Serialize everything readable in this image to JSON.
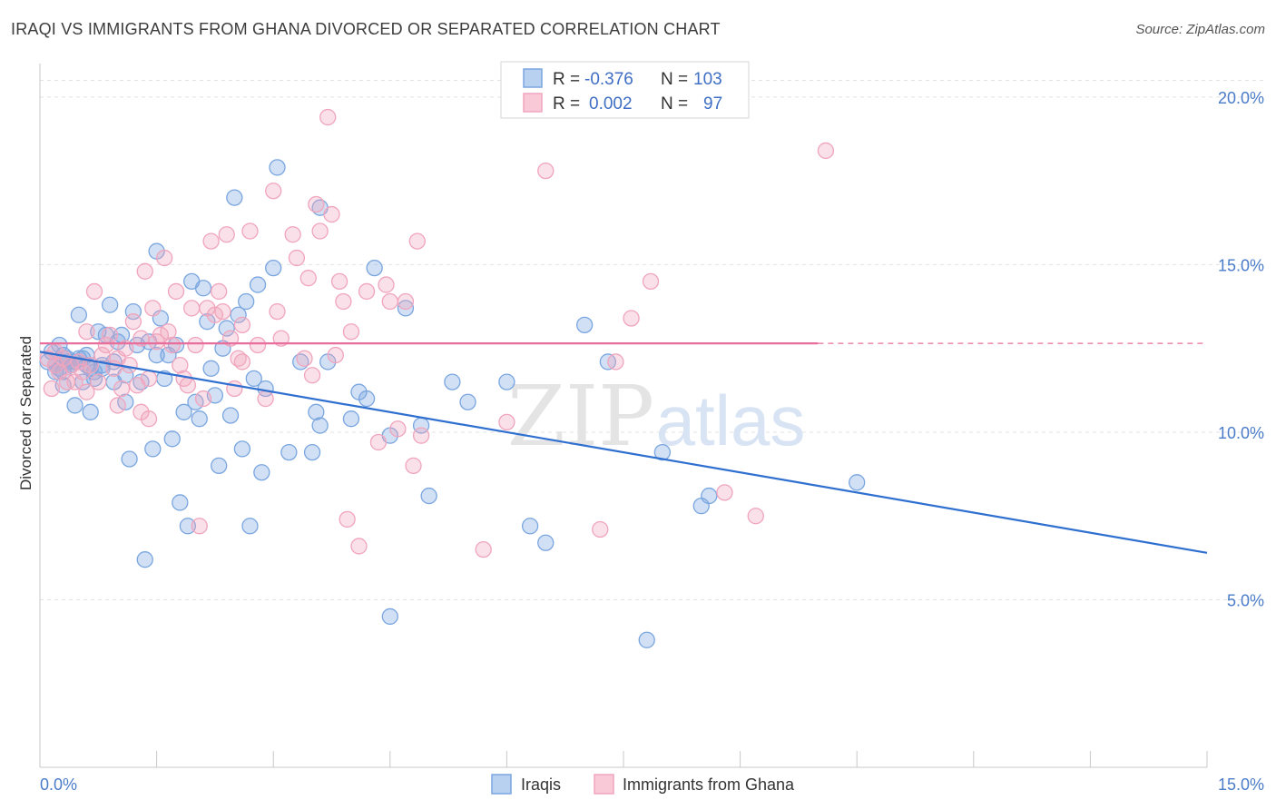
{
  "header": {
    "title": "IRAQI VS IMMIGRANTS FROM GHANA DIVORCED OR SEPARATED CORRELATION CHART",
    "source": "Source: ZipAtlas.com"
  },
  "watermark": {
    "zip": "ZIP",
    "atlas": "atlas"
  },
  "stats_legend": {
    "r_label": "R =",
    "n_label": "N =",
    "rows": [
      {
        "series": "Iraqis",
        "r": "-0.376",
        "n": "103"
      },
      {
        "series": "Immigrants from Ghana",
        "r": "0.002",
        "n": "97"
      }
    ]
  },
  "chart_data": {
    "type": "scatter",
    "title": "IRAQI VS IMMIGRANTS FROM GHANA DIVORCED OR SEPARATED CORRELATION CHART",
    "ylabel": "Divorced or Separated",
    "xlabel": "",
    "xlim": [
      0,
      15
    ],
    "ylim": [
      0,
      21
    ],
    "x_tick_labels": [
      {
        "value": 0,
        "label": "0.0%"
      },
      {
        "value": 15,
        "label": "15.0%"
      }
    ],
    "y_tick_labels": [
      {
        "value": 5,
        "label": "5.0%"
      },
      {
        "value": 10,
        "label": "10.0%"
      },
      {
        "value": 15,
        "label": "15.0%"
      },
      {
        "value": 20,
        "label": "20.0%"
      }
    ],
    "grid": "horizontal dashed",
    "legend_position": "bottom-center",
    "series": [
      {
        "name": "Iraqis",
        "color": "#7aa6e0",
        "line_color": "#2f6fd0",
        "trend": {
          "x": [
            0,
            15
          ],
          "y": [
            12.4,
            6.4
          ],
          "style": "solid"
        },
        "points": [
          [
            0.1,
            12.1
          ],
          [
            0.15,
            12.4
          ],
          [
            0.2,
            12.0
          ],
          [
            0.25,
            12.6
          ],
          [
            0.3,
            11.8
          ],
          [
            0.35,
            12.2
          ],
          [
            0.4,
            12.0
          ],
          [
            0.45,
            10.8
          ],
          [
            0.5,
            13.5
          ],
          [
            0.55,
            11.5
          ],
          [
            0.6,
            12.0
          ],
          [
            0.65,
            10.6
          ],
          [
            0.7,
            11.6
          ],
          [
            0.75,
            13.0
          ],
          [
            0.8,
            11.9
          ],
          [
            0.85,
            12.9
          ],
          [
            0.9,
            13.8
          ],
          [
            0.95,
            11.5
          ],
          [
            1.0,
            12.7
          ],
          [
            1.05,
            12.9
          ],
          [
            1.1,
            10.9
          ],
          [
            1.15,
            9.2
          ],
          [
            1.2,
            13.6
          ],
          [
            1.25,
            12.6
          ],
          [
            1.3,
            11.5
          ],
          [
            1.35,
            6.2
          ],
          [
            1.4,
            12.7
          ],
          [
            1.45,
            9.5
          ],
          [
            1.5,
            12.3
          ],
          [
            1.55,
            13.4
          ],
          [
            1.6,
            11.6
          ],
          [
            1.65,
            12.3
          ],
          [
            1.7,
            9.8
          ],
          [
            1.75,
            12.6
          ],
          [
            1.8,
            7.9
          ],
          [
            1.85,
            10.6
          ],
          [
            1.9,
            7.2
          ],
          [
            1.95,
            14.5
          ],
          [
            2.0,
            10.9
          ],
          [
            2.05,
            10.4
          ],
          [
            2.1,
            14.3
          ],
          [
            2.15,
            13.3
          ],
          [
            2.2,
            11.9
          ],
          [
            2.25,
            11.1
          ],
          [
            2.3,
            9.0
          ],
          [
            2.35,
            12.5
          ],
          [
            2.4,
            13.1
          ],
          [
            2.45,
            10.5
          ],
          [
            2.5,
            17.0
          ],
          [
            2.55,
            13.5
          ],
          [
            2.6,
            9.5
          ],
          [
            2.65,
            13.9
          ],
          [
            2.7,
            7.2
          ],
          [
            2.75,
            11.6
          ],
          [
            2.8,
            14.4
          ],
          [
            2.85,
            8.8
          ],
          [
            2.9,
            11.3
          ],
          [
            3.0,
            14.9
          ],
          [
            3.05,
            17.9
          ],
          [
            3.2,
            9.4
          ],
          [
            3.35,
            12.1
          ],
          [
            3.5,
            9.4
          ],
          [
            3.55,
            10.6
          ],
          [
            3.6,
            10.2
          ],
          [
            3.7,
            12.1
          ],
          [
            4.0,
            10.4
          ],
          [
            4.1,
            11.2
          ],
          [
            4.2,
            11.0
          ],
          [
            4.3,
            14.9
          ],
          [
            4.5,
            9.9
          ],
          [
            4.7,
            13.7
          ],
          [
            4.9,
            10.2
          ],
          [
            5.0,
            8.1
          ],
          [
            5.3,
            11.5
          ],
          [
            5.5,
            10.9
          ],
          [
            6.0,
            11.5
          ],
          [
            6.3,
            7.2
          ],
          [
            6.5,
            6.7
          ],
          [
            7.0,
            13.2
          ],
          [
            7.3,
            12.1
          ],
          [
            7.8,
            3.8
          ],
          [
            8.0,
            9.4
          ],
          [
            8.5,
            7.8
          ],
          [
            8.6,
            8.1
          ],
          [
            10.5,
            8.5
          ],
          [
            4.5,
            4.5
          ],
          [
            0.3,
            11.4
          ],
          [
            0.45,
            12.1
          ],
          [
            0.6,
            12.3
          ],
          [
            0.7,
            11.8
          ],
          [
            0.95,
            12.1
          ],
          [
            1.1,
            11.7
          ],
          [
            0.3,
            12.3
          ],
          [
            0.4,
            12.0
          ],
          [
            0.55,
            12.2
          ],
          [
            3.6,
            16.7
          ],
          [
            1.5,
            15.4
          ],
          [
            0.8,
            12.0
          ],
          [
            0.2,
            11.8
          ],
          [
            0.25,
            11.9
          ],
          [
            0.35,
            12.1
          ],
          [
            0.5,
            12.2
          ],
          [
            0.65,
            11.9
          ]
        ]
      },
      {
        "name": "Immigrants from Ghana",
        "color": "#f0a5bd",
        "line_color": "#e86f9b",
        "trend": {
          "x": [
            0,
            10
          ],
          "y": [
            12.65,
            12.65
          ],
          "style": "solid-then-dashed",
          "solid_to": 10,
          "dashed_to": 15
        },
        "points": [
          [
            0.1,
            12.2
          ],
          [
            0.15,
            11.3
          ],
          [
            0.2,
            12.4
          ],
          [
            0.3,
            12.2
          ],
          [
            0.35,
            11.5
          ],
          [
            0.4,
            12.0
          ],
          [
            0.45,
            11.5
          ],
          [
            0.5,
            12.1
          ],
          [
            0.55,
            11.8
          ],
          [
            0.6,
            13.0
          ],
          [
            0.65,
            12.0
          ],
          [
            0.7,
            14.2
          ],
          [
            0.75,
            11.5
          ],
          [
            0.8,
            12.3
          ],
          [
            0.85,
            12.6
          ],
          [
            0.9,
            12.9
          ],
          [
            0.95,
            11.9
          ],
          [
            1.0,
            12.2
          ],
          [
            1.05,
            11.3
          ],
          [
            1.1,
            12.5
          ],
          [
            1.15,
            12.0
          ],
          [
            1.2,
            13.3
          ],
          [
            1.25,
            11.4
          ],
          [
            1.3,
            12.8
          ],
          [
            1.35,
            14.8
          ],
          [
            1.4,
            11.6
          ],
          [
            1.45,
            13.7
          ],
          [
            1.5,
            12.7
          ],
          [
            1.55,
            12.9
          ],
          [
            1.6,
            15.2
          ],
          [
            1.65,
            13.0
          ],
          [
            1.7,
            12.6
          ],
          [
            1.75,
            14.2
          ],
          [
            1.8,
            12.0
          ],
          [
            1.85,
            11.6
          ],
          [
            1.9,
            11.4
          ],
          [
            1.95,
            13.7
          ],
          [
            2.0,
            12.6
          ],
          [
            2.05,
            7.2
          ],
          [
            2.1,
            11.0
          ],
          [
            2.15,
            13.7
          ],
          [
            2.2,
            15.7
          ],
          [
            2.25,
            13.5
          ],
          [
            2.3,
            14.2
          ],
          [
            2.35,
            13.6
          ],
          [
            2.4,
            15.9
          ],
          [
            2.45,
            12.8
          ],
          [
            2.5,
            11.3
          ],
          [
            2.55,
            12.2
          ],
          [
            2.6,
            13.2
          ],
          [
            2.7,
            16.0
          ],
          [
            2.8,
            12.6
          ],
          [
            2.9,
            11.0
          ],
          [
            3.0,
            17.2
          ],
          [
            3.05,
            13.6
          ],
          [
            3.1,
            12.8
          ],
          [
            3.25,
            15.9
          ],
          [
            3.3,
            15.2
          ],
          [
            3.4,
            12.2
          ],
          [
            3.45,
            14.6
          ],
          [
            3.5,
            11.7
          ],
          [
            3.55,
            16.8
          ],
          [
            3.6,
            16.0
          ],
          [
            3.7,
            19.4
          ],
          [
            3.75,
            16.5
          ],
          [
            3.8,
            12.3
          ],
          [
            3.85,
            14.5
          ],
          [
            3.9,
            13.9
          ],
          [
            3.95,
            7.4
          ],
          [
            4.0,
            13.0
          ],
          [
            4.1,
            6.6
          ],
          [
            4.2,
            14.2
          ],
          [
            4.35,
            9.7
          ],
          [
            4.45,
            14.4
          ],
          [
            4.5,
            13.9
          ],
          [
            4.8,
            9.0
          ],
          [
            4.85,
            15.7
          ],
          [
            4.9,
            9.9
          ],
          [
            5.7,
            6.5
          ],
          [
            6.0,
            10.3
          ],
          [
            6.5,
            17.8
          ],
          [
            7.2,
            7.1
          ],
          [
            7.4,
            12.1
          ],
          [
            7.6,
            13.4
          ],
          [
            7.85,
            14.5
          ],
          [
            8.8,
            8.2
          ],
          [
            9.2,
            7.5
          ],
          [
            10.1,
            18.4
          ],
          [
            4.7,
            13.9
          ],
          [
            4.6,
            10.1
          ],
          [
            2.6,
            12.1
          ],
          [
            1.0,
            10.8
          ],
          [
            1.3,
            10.6
          ],
          [
            1.4,
            10.4
          ],
          [
            0.6,
            11.2
          ],
          [
            0.25,
            11.8
          ],
          [
            0.2,
            12.0
          ]
        ]
      }
    ]
  }
}
